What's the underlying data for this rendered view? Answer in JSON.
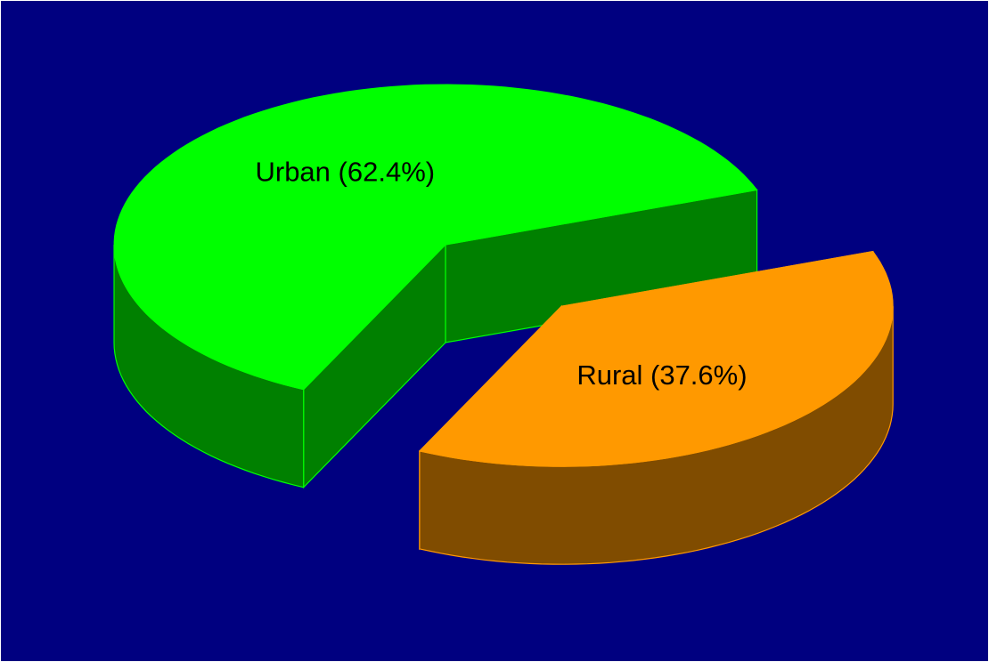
{
  "chart_data": {
    "type": "pie3d",
    "values": [
      62.4,
      37.6
    ],
    "value_labels": [
      "Urban (62.4%)",
      "Rural (37.6%)"
    ],
    "colors": [
      "#00ff00",
      "#ff9900"
    ],
    "side_colors": [
      "#008000",
      "#804c00"
    ]
  }
}
